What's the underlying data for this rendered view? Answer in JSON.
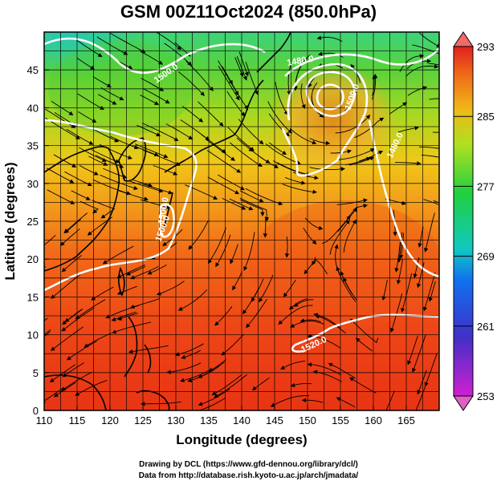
{
  "title": "GSM 00Z11Oct2024 (850.0hPa)",
  "x_axis": {
    "label": "Longitude (degrees)",
    "ticks": [
      "110",
      "115",
      "120",
      "125",
      "130",
      "135",
      "140",
      "145",
      "150",
      "155",
      "160",
      "165"
    ],
    "range": [
      110,
      170
    ]
  },
  "y_axis": {
    "label": "Latitude  (degrees)",
    "ticks": [
      "0",
      "5",
      "10",
      "15",
      "20",
      "25",
      "30",
      "35",
      "40",
      "45"
    ],
    "range": [
      0,
      50
    ]
  },
  "colorbar": {
    "ticks": [
      "253",
      "261",
      "269",
      "277",
      "285",
      "293"
    ],
    "range": [
      253,
      293
    ],
    "colors": [
      "#d020d0",
      "#2020c0",
      "#20a0f0",
      "#20d040",
      "#f0e020",
      "#f07010",
      "#e02020"
    ]
  },
  "contour_labels": [
    "1500.0",
    "1480.0",
    "1480.0",
    "1500.0",
    "1500.0",
    "1500.0",
    "1520.0"
  ],
  "credits": {
    "line1": "Drawing by DCL (https://www.gfd-dennou.org/library/dcl/)",
    "line2": "Data from http://database.rish.kyoto-u.ac.jp/arch/jmadata/"
  }
}
